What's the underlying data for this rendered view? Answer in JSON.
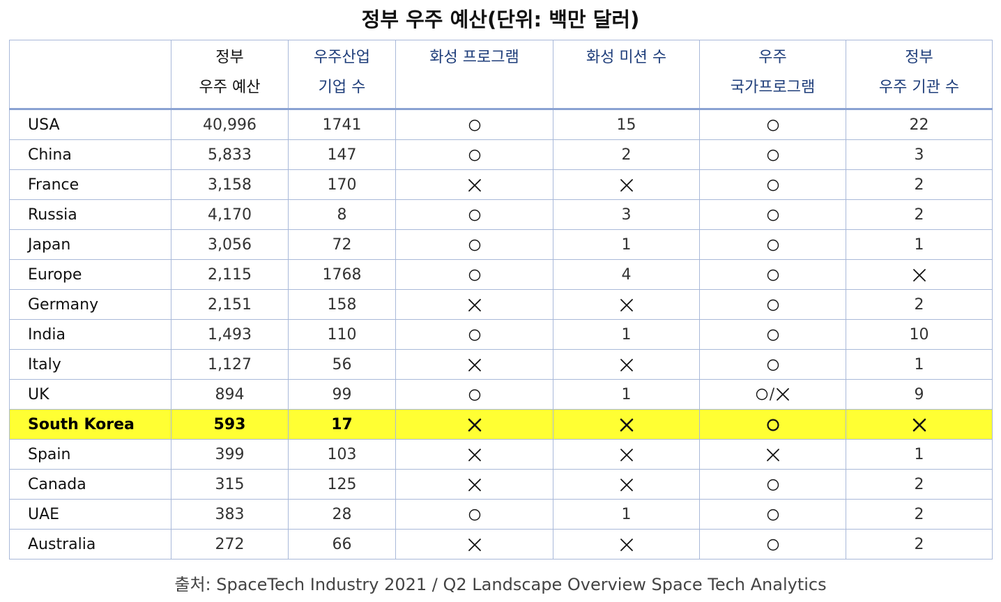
{
  "title": "정부 우주 예산(단위: 백만 달러)",
  "table": {
    "headers": [
      {
        "lines": [
          "",
          ""
        ]
      },
      {
        "lines": [
          "정부",
          "우주 예산"
        ]
      },
      {
        "lines": [
          "우주산업",
          "기업 수"
        ]
      },
      {
        "lines": [
          "화성 프로그램"
        ]
      },
      {
        "lines": [
          "화성 미션 수"
        ]
      },
      {
        "lines": [
          "우주",
          "국가프로그램"
        ]
      },
      {
        "lines": [
          "정부",
          "우주 기관 수"
        ]
      }
    ],
    "rows": [
      {
        "country": "USA",
        "budget": "40,996",
        "companies": "1741",
        "mars_program": "O",
        "mars_missions": "15",
        "national_program": "O",
        "agencies": "22"
      },
      {
        "country": "China",
        "budget": "5,833",
        "companies": "147",
        "mars_program": "O",
        "mars_missions": "2",
        "national_program": "O",
        "agencies": "3"
      },
      {
        "country": "France",
        "budget": "3,158",
        "companies": "170",
        "mars_program": "X",
        "mars_missions": "X",
        "national_program": "O",
        "agencies": "2"
      },
      {
        "country": "Russia",
        "budget": "4,170",
        "companies": "8",
        "mars_program": "O",
        "mars_missions": "3",
        "national_program": "O",
        "agencies": "2"
      },
      {
        "country": "Japan",
        "budget": "3,056",
        "companies": "72",
        "mars_program": "O",
        "mars_missions": "1",
        "national_program": "O",
        "agencies": "1"
      },
      {
        "country": "Europe",
        "budget": "2,115",
        "companies": "1768",
        "mars_program": "O",
        "mars_missions": "4",
        "national_program": "O",
        "agencies": "X"
      },
      {
        "country": "Germany",
        "budget": "2,151",
        "companies": "158",
        "mars_program": "X",
        "mars_missions": "X",
        "national_program": "O",
        "agencies": "2"
      },
      {
        "country": "India",
        "budget": "1,493",
        "companies": "110",
        "mars_program": "O",
        "mars_missions": "1",
        "national_program": "O",
        "agencies": "10"
      },
      {
        "country": "Italy",
        "budget": "1,127",
        "companies": "56",
        "mars_program": "X",
        "mars_missions": "X",
        "national_program": "O",
        "agencies": "1"
      },
      {
        "country": "UK",
        "budget": "894",
        "companies": "99",
        "mars_program": "O",
        "mars_missions": "1",
        "national_program": "O/X",
        "agencies": "9"
      },
      {
        "country": "South Korea",
        "budget": "593",
        "companies": "17",
        "mars_program": "X",
        "mars_missions": "X",
        "national_program": "O",
        "agencies": "X",
        "highlight": true
      },
      {
        "country": "Spain",
        "budget": "399",
        "companies": "103",
        "mars_program": "X",
        "mars_missions": "X",
        "national_program": "X",
        "agencies": "1"
      },
      {
        "country": "Canada",
        "budget": "315",
        "companies": "125",
        "mars_program": "X",
        "mars_missions": "X",
        "national_program": "O",
        "agencies": "2"
      },
      {
        "country": "UAE",
        "budget": "383",
        "companies": "28",
        "mars_program": "O",
        "mars_missions": "1",
        "national_program": "O",
        "agencies": "2"
      },
      {
        "country": "Australia",
        "budget": "272",
        "companies": "66",
        "mars_program": "X",
        "mars_missions": "X",
        "national_program": "O",
        "agencies": "2"
      }
    ]
  },
  "colors": {
    "highlight": "#ffff33",
    "border": "#a9b9d9",
    "header_text": "#1e3d7a"
  },
  "source": "출처: SpaceTech Industry 2021 / Q2 Landscape Overview Space Tech Analytics"
}
